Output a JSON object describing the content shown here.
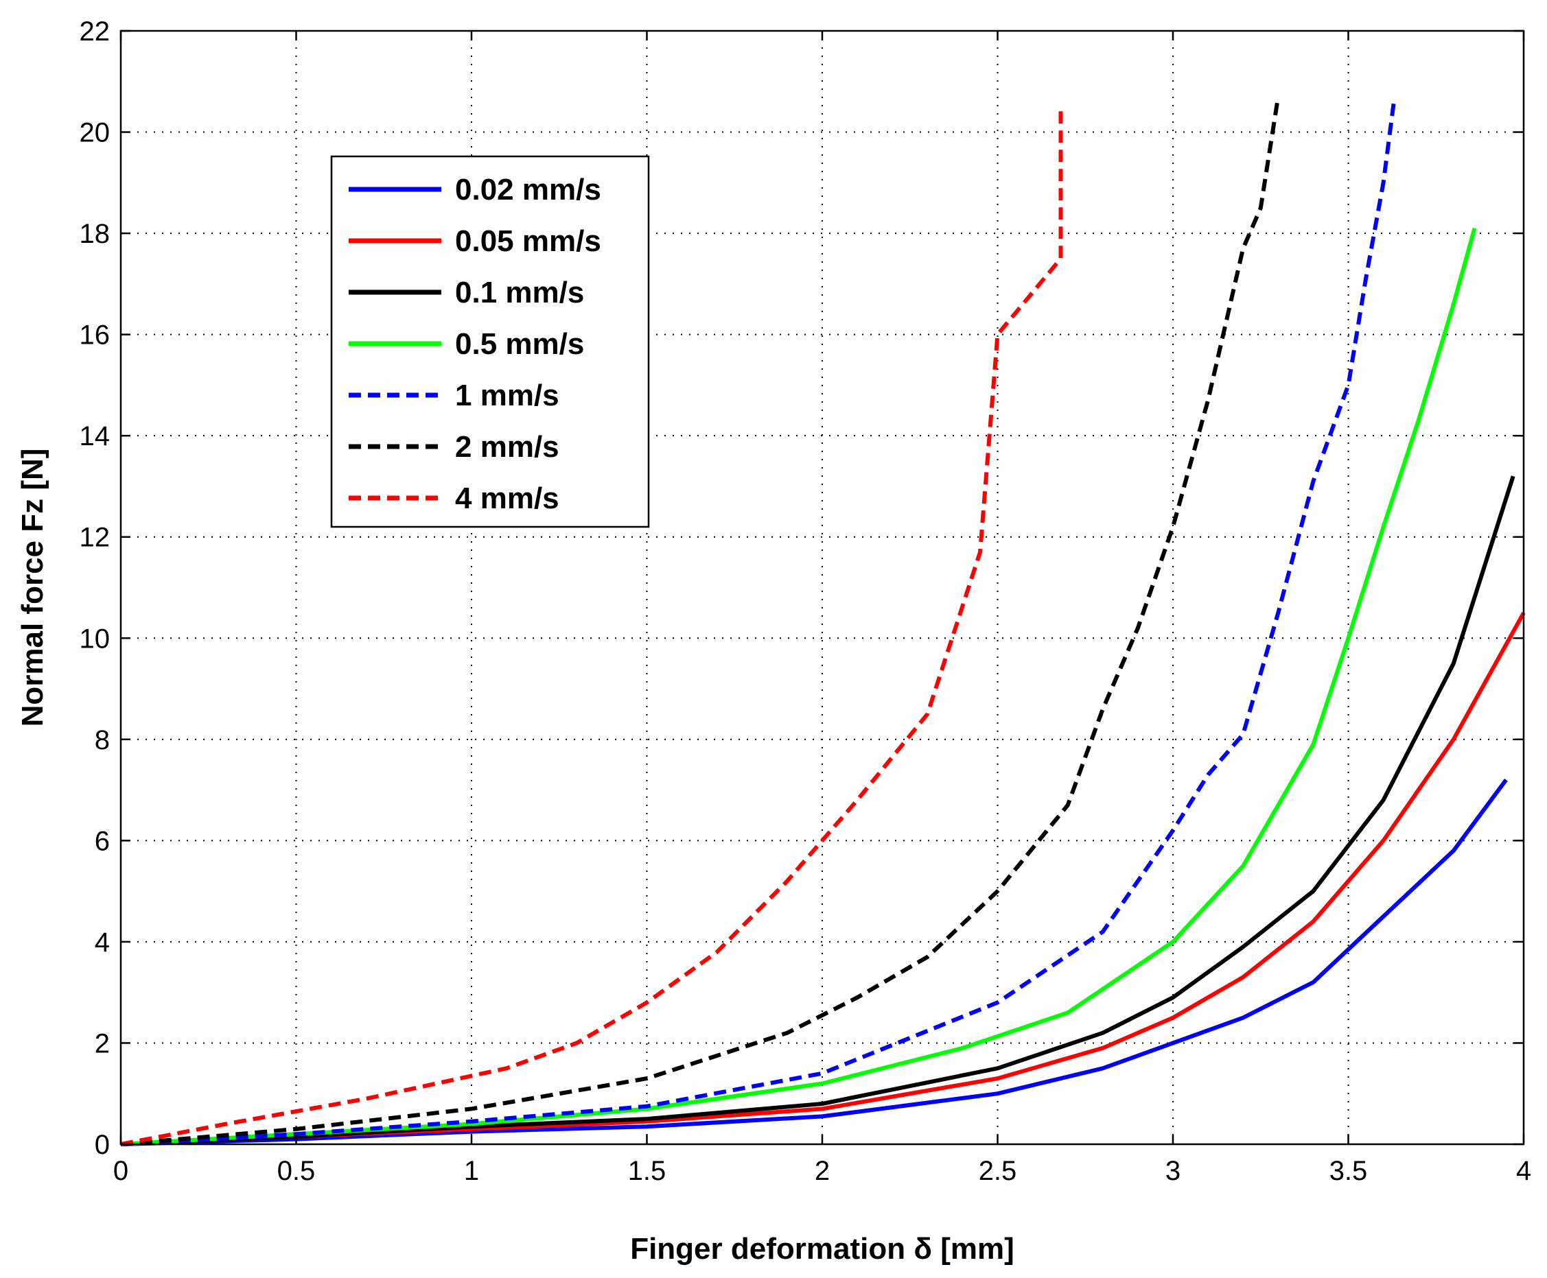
{
  "chart_data": {
    "type": "line",
    "title": "",
    "xlabel": "Finger deformation δ [mm]",
    "ylabel": "Normal force Fz [N]",
    "xlim": [
      0,
      4
    ],
    "ylim": [
      0,
      22
    ],
    "xticks": [
      "0",
      "0.5",
      "1",
      "1.5",
      "2",
      "2.5",
      "3",
      "3.5",
      "4"
    ],
    "yticks": [
      "0",
      "2",
      "4",
      "6",
      "8",
      "10",
      "12",
      "14",
      "16",
      "18",
      "20",
      "22"
    ],
    "grid": true,
    "legend_position": "top-left",
    "series": [
      {
        "name": "0.02 mm/s",
        "color": "#0000ff",
        "style": "solid",
        "points": [
          [
            0,
            0
          ],
          [
            0.5,
            0.1
          ],
          [
            1,
            0.25
          ],
          [
            1.5,
            0.35
          ],
          [
            2,
            0.55
          ],
          [
            2.5,
            1.0
          ],
          [
            2.8,
            1.5
          ],
          [
            3,
            2.0
          ],
          [
            3.2,
            2.5
          ],
          [
            3.4,
            3.2
          ],
          [
            3.6,
            4.5
          ],
          [
            3.8,
            5.8
          ],
          [
            3.95,
            7.2
          ]
        ]
      },
      {
        "name": "0.05 mm/s",
        "color": "#ff0000",
        "style": "solid",
        "points": [
          [
            0,
            0
          ],
          [
            0.5,
            0.15
          ],
          [
            1,
            0.3
          ],
          [
            1.5,
            0.45
          ],
          [
            2,
            0.7
          ],
          [
            2.5,
            1.3
          ],
          [
            2.8,
            1.9
          ],
          [
            3,
            2.5
          ],
          [
            3.2,
            3.3
          ],
          [
            3.4,
            4.4
          ],
          [
            3.6,
            6.0
          ],
          [
            3.8,
            8.0
          ],
          [
            4,
            10.5
          ]
        ]
      },
      {
        "name": "0.1 mm/s",
        "color": "#000000",
        "style": "solid",
        "points": [
          [
            0,
            0
          ],
          [
            0.5,
            0.15
          ],
          [
            1,
            0.35
          ],
          [
            1.5,
            0.5
          ],
          [
            2,
            0.8
          ],
          [
            2.5,
            1.5
          ],
          [
            2.8,
            2.2
          ],
          [
            3,
            2.9
          ],
          [
            3.2,
            3.9
          ],
          [
            3.4,
            5.0
          ],
          [
            3.6,
            6.8
          ],
          [
            3.8,
            9.5
          ],
          [
            3.97,
            13.2
          ]
        ]
      },
      {
        "name": "0.5 mm/s",
        "color": "#00ff00",
        "style": "solid",
        "points": [
          [
            0,
            0
          ],
          [
            0.5,
            0.2
          ],
          [
            1,
            0.4
          ],
          [
            1.5,
            0.7
          ],
          [
            2,
            1.2
          ],
          [
            2.4,
            1.9
          ],
          [
            2.7,
            2.6
          ],
          [
            3,
            4.0
          ],
          [
            3.2,
            5.5
          ],
          [
            3.4,
            7.9
          ],
          [
            3.5,
            10.0
          ],
          [
            3.6,
            12.2
          ],
          [
            3.7,
            14.3
          ],
          [
            3.8,
            16.6
          ],
          [
            3.86,
            18.1
          ]
        ]
      },
      {
        "name": "1 mm/s",
        "color": "#0000ff",
        "style": "dashed",
        "points": [
          [
            0,
            0
          ],
          [
            0.5,
            0.2
          ],
          [
            1,
            0.45
          ],
          [
            1.5,
            0.75
          ],
          [
            2,
            1.4
          ],
          [
            2.5,
            2.8
          ],
          [
            2.8,
            4.2
          ],
          [
            3,
            6.2
          ],
          [
            3.1,
            7.3
          ],
          [
            3.2,
            8.1
          ],
          [
            3.3,
            10.5
          ],
          [
            3.4,
            13.1
          ],
          [
            3.5,
            15.0
          ],
          [
            3.55,
            17.1
          ],
          [
            3.6,
            19.0
          ],
          [
            3.63,
            20.6
          ]
        ]
      },
      {
        "name": "2 mm/s",
        "color": "#000000",
        "style": "dashed",
        "points": [
          [
            0,
            0
          ],
          [
            0.5,
            0.3
          ],
          [
            1,
            0.7
          ],
          [
            1.5,
            1.3
          ],
          [
            1.9,
            2.2
          ],
          [
            2.1,
            2.9
          ],
          [
            2.3,
            3.7
          ],
          [
            2.5,
            5.0
          ],
          [
            2.7,
            6.7
          ],
          [
            2.8,
            8.6
          ],
          [
            2.9,
            10.2
          ],
          [
            3,
            12.2
          ],
          [
            3.1,
            14.7
          ],
          [
            3.2,
            17.7
          ],
          [
            3.25,
            18.5
          ],
          [
            3.3,
            20.7
          ]
        ]
      },
      {
        "name": "4 mm/s",
        "color": "#ff0000",
        "style": "dashed",
        "points": [
          [
            0,
            0
          ],
          [
            0.3,
            0.4
          ],
          [
            0.7,
            0.9
          ],
          [
            1.1,
            1.5
          ],
          [
            1.3,
            2.0
          ],
          [
            1.5,
            2.8
          ],
          [
            1.7,
            3.8
          ],
          [
            1.9,
            5.2
          ],
          [
            2.1,
            6.8
          ],
          [
            2.3,
            8.5
          ],
          [
            2.45,
            11.7
          ],
          [
            2.5,
            16.0
          ],
          [
            2.68,
            17.5
          ],
          [
            2.68,
            20.5
          ]
        ]
      }
    ]
  }
}
